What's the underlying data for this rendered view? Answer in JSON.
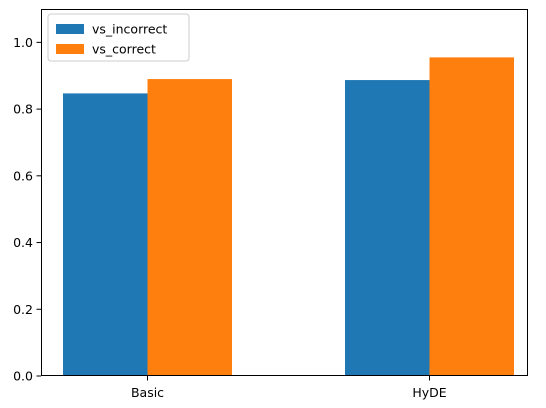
{
  "chart_data": {
    "type": "bar",
    "categories": [
      "Basic",
      "HyDE"
    ],
    "series": [
      {
        "name": "vs_incorrect",
        "values": [
          0.847,
          0.887
        ],
        "color": "#1f77b4"
      },
      {
        "name": "vs_correct",
        "values": [
          0.89,
          0.955
        ],
        "color": "#ff7f0e"
      }
    ],
    "title": "",
    "xlabel": "",
    "ylabel": "",
    "ylim": [
      0.0,
      1.1
    ],
    "yticks": [
      "0.0",
      "0.2",
      "0.4",
      "0.6",
      "0.8",
      "1.0"
    ],
    "grid": false,
    "legend_position": "upper-left"
  }
}
